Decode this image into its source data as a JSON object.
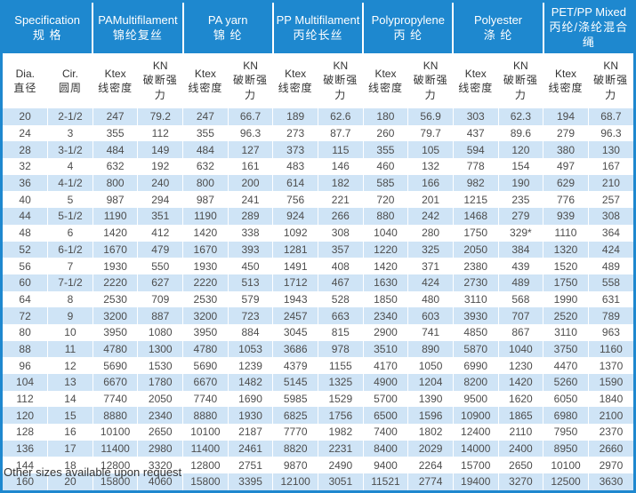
{
  "colors": {
    "header_bg": "#1e88cf",
    "alt_row_bg": "#cfe4f6",
    "frame_border": "#1e88cf",
    "data_text": "#4d4d4d",
    "subheader_text": "#333333"
  },
  "table": {
    "groups": [
      {
        "en": "Specification",
        "zh": "规 格",
        "sub": [
          {
            "en": "Dia.",
            "zh": "直径"
          },
          {
            "en": "Cir.",
            "zh": "圆周"
          }
        ]
      },
      {
        "en": "PAMultifilament",
        "zh": "锦纶复丝",
        "sub": [
          {
            "en": "Ktex",
            "zh": "线密度"
          },
          {
            "en": "KN",
            "zh": "破断强力"
          }
        ]
      },
      {
        "en": "PA yarn",
        "zh": "锦 纶",
        "sub": [
          {
            "en": "Ktex",
            "zh": "线密度"
          },
          {
            "en": "KN",
            "zh": "破断强力"
          }
        ]
      },
      {
        "en": "PP Multifilament",
        "zh": "丙纶长丝",
        "sub": [
          {
            "en": "Ktex",
            "zh": "线密度"
          },
          {
            "en": "KN",
            "zh": "破断强力"
          }
        ]
      },
      {
        "en": "Polypropylene",
        "zh": "丙 纶",
        "sub": [
          {
            "en": "Ktex",
            "zh": "线密度"
          },
          {
            "en": "KN",
            "zh": "破断强力"
          }
        ]
      },
      {
        "en": "Polyester",
        "zh": "涤 纶",
        "sub": [
          {
            "en": "Ktex",
            "zh": "线密度"
          },
          {
            "en": "KN",
            "zh": "破断强力"
          }
        ]
      },
      {
        "en": "PET/PP Mixed",
        "zh": "丙纶/涤纶混合绳",
        "sub": [
          {
            "en": "Ktex",
            "zh": "线密度"
          },
          {
            "en": "KN",
            "zh": "破断强力"
          }
        ]
      }
    ],
    "rows": [
      [
        "20",
        "2-1/2",
        "247",
        "79.2",
        "247",
        "66.7",
        "189",
        "62.6",
        "180",
        "56.9",
        "303",
        "62.3",
        "194",
        "68.7"
      ],
      [
        "24",
        "3",
        "355",
        "112",
        "355",
        "96.3",
        "273",
        "87.7",
        "260",
        "79.7",
        "437",
        "89.6",
        "279",
        "96.3"
      ],
      [
        "28",
        "3-1/2",
        "484",
        "149",
        "484",
        "127",
        "373",
        "115",
        "355",
        "105",
        "594",
        "120",
        "380",
        "130"
      ],
      [
        "32",
        "4",
        "632",
        "192",
        "632",
        "161",
        "483",
        "146",
        "460",
        "132",
        "778",
        "154",
        "497",
        "167"
      ],
      [
        "36",
        "4-1/2",
        "800",
        "240",
        "800",
        "200",
        "614",
        "182",
        "585",
        "166",
        "982",
        "190",
        "629",
        "210"
      ],
      [
        "40",
        "5",
        "987",
        "294",
        "987",
        "241",
        "756",
        "221",
        "720",
        "201",
        "1215",
        "235",
        "776",
        "257"
      ],
      [
        "44",
        "5-1/2",
        "1190",
        "351",
        "1190",
        "289",
        "924",
        "266",
        "880",
        "242",
        "1468",
        "279",
        "939",
        "308"
      ],
      [
        "48",
        "6",
        "1420",
        "412",
        "1420",
        "338",
        "1092",
        "308",
        "1040",
        "280",
        "1750",
        "329*",
        "1110",
        "364"
      ],
      [
        "52",
        "6-1/2",
        "1670",
        "479",
        "1670",
        "393",
        "1281",
        "357",
        "1220",
        "325",
        "2050",
        "384",
        "1320",
        "424"
      ],
      [
        "56",
        "7",
        "1930",
        "550",
        "1930",
        "450",
        "1491",
        "408",
        "1420",
        "371",
        "2380",
        "439",
        "1520",
        "489"
      ],
      [
        "60",
        "7-1/2",
        "2220",
        "627",
        "2220",
        "513",
        "1712",
        "467",
        "1630",
        "424",
        "2730",
        "489",
        "1750",
        "558"
      ],
      [
        "64",
        "8",
        "2530",
        "709",
        "2530",
        "579",
        "1943",
        "528",
        "1850",
        "480",
        "3110",
        "568",
        "1990",
        "631"
      ],
      [
        "72",
        "9",
        "3200",
        "887",
        "3200",
        "723",
        "2457",
        "663",
        "2340",
        "603",
        "3930",
        "707",
        "2520",
        "789"
      ],
      [
        "80",
        "10",
        "3950",
        "1080",
        "3950",
        "884",
        "3045",
        "815",
        "2900",
        "741",
        "4850",
        "867",
        "3110",
        "963"
      ],
      [
        "88",
        "11",
        "4780",
        "1300",
        "4780",
        "1053",
        "3686",
        "978",
        "3510",
        "890",
        "5870",
        "1040",
        "3750",
        "1160"
      ],
      [
        "96",
        "12",
        "5690",
        "1530",
        "5690",
        "1239",
        "4379",
        "1155",
        "4170",
        "1050",
        "6990",
        "1230",
        "4470",
        "1370"
      ],
      [
        "104",
        "13",
        "6670",
        "1780",
        "6670",
        "1482",
        "5145",
        "1325",
        "4900",
        "1204",
        "8200",
        "1420",
        "5260",
        "1590"
      ],
      [
        "112",
        "14",
        "7740",
        "2050",
        "7740",
        "1690",
        "5985",
        "1529",
        "5700",
        "1390",
        "9500",
        "1620",
        "6050",
        "1840"
      ],
      [
        "120",
        "15",
        "8880",
        "2340",
        "8880",
        "1930",
        "6825",
        "1756",
        "6500",
        "1596",
        "10900",
        "1865",
        "6980",
        "2100"
      ],
      [
        "128",
        "16",
        "10100",
        "2650",
        "10100",
        "2187",
        "7770",
        "1982",
        "7400",
        "1802",
        "12400",
        "2110",
        "7950",
        "2370"
      ],
      [
        "136",
        "17",
        "11400",
        "2980",
        "11400",
        "2461",
        "8820",
        "2231",
        "8400",
        "2029",
        "14000",
        "2400",
        "8950",
        "2660"
      ],
      [
        "144",
        "18",
        "12800",
        "3320",
        "12800",
        "2751",
        "9870",
        "2490",
        "9400",
        "2264",
        "15700",
        "2650",
        "10100",
        "2970"
      ],
      [
        "160",
        "20",
        "15800",
        "4060",
        "15800",
        "3395",
        "12100",
        "3051",
        "11521",
        "2774",
        "19400",
        "3270",
        "12500",
        "3630"
      ]
    ]
  },
  "footer": {
    "note": "Other sizes available upon request"
  }
}
